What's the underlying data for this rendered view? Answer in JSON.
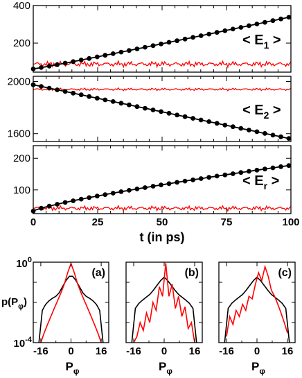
{
  "chart_data": [
    {
      "type": "line",
      "panel": "E1",
      "label_main": "< E",
      "label_sub": "1",
      "label_end": " >",
      "xlim": [
        0,
        100
      ],
      "ylim": [
        45,
        400
      ],
      "yticks": [
        200,
        400
      ],
      "series": [
        {
          "color": "#000000",
          "markers": true,
          "x": [
            0,
            100
          ],
          "y": [
            62,
            340
          ],
          "pow": 1.05
        },
        {
          "color": "#ff0000",
          "markers": false,
          "mean": 88,
          "amp": 12
        }
      ]
    },
    {
      "type": "line",
      "panel": "E2",
      "label_main": "< E",
      "label_sub": "2",
      "label_end": " >",
      "xlim": [
        0,
        100
      ],
      "ylim": [
        1540,
        2040
      ],
      "yticks": [
        1600,
        2000
      ],
      "series": [
        {
          "color": "#000000",
          "markers": true,
          "x": [
            0,
            100
          ],
          "y": [
            1975,
            1560
          ],
          "pow": 1.0
        },
        {
          "color": "#ff0000",
          "markers": false,
          "mean": 1940,
          "amp": 8
        }
      ]
    },
    {
      "type": "line",
      "panel": "Er",
      "label_main": "< E",
      "label_sub": "r",
      "label_end": " >",
      "xlim": [
        0,
        100
      ],
      "ylim": [
        25,
        240
      ],
      "yticks": [
        100,
        200
      ],
      "xticks": [
        0,
        25,
        50,
        75,
        100
      ],
      "xlabel": "t (in ps)",
      "series": [
        {
          "color": "#000000",
          "markers": true,
          "x": [
            0,
            100
          ],
          "y": [
            33,
            178
          ],
          "pow": 0.8
        },
        {
          "color": "#ff0000",
          "markers": false,
          "mean": 42,
          "amp": 6
        }
      ]
    }
  ],
  "insets": {
    "ylabel_main": "p(P",
    "ylabel_sub": "φ",
    "ylabel_end": ")",
    "y_top": "10",
    "y_top_exp": "0",
    "y_bot": "10",
    "y_bot_exp": "-4",
    "xticks": [
      "-16",
      "0",
      "16"
    ],
    "xlabel_main": "P",
    "xlabel_sub": "φ",
    "panels": [
      {
        "tag": "(a)",
        "black": [
          5e-05,
          0.004,
          0.008,
          0.012,
          0.016,
          0.02,
          0.03,
          0.06,
          0.12,
          0.2,
          0.2,
          0.12,
          0.06,
          0.03,
          0.02,
          0.016,
          0.012,
          0.008,
          0.004,
          5e-05
        ],
        "red": [
          0.0001,
          0.0003,
          0.0008,
          0.002,
          0.005,
          0.012,
          0.03,
          0.08,
          0.3,
          0.85,
          0.3,
          0.08,
          0.03,
          0.012,
          0.005,
          0.002,
          0.0008,
          0.0003,
          0.0001
        ]
      },
      {
        "tag": "(b)",
        "black": [
          8e-05,
          0.005,
          0.009,
          0.013,
          0.018,
          0.025,
          0.04,
          0.07,
          0.12,
          0.18,
          0.12,
          0.07,
          0.04,
          0.025,
          0.018,
          0.013,
          0.009,
          0.005,
          8e-05
        ],
        "red": [
          0.0001,
          0.0002,
          0.001,
          0.0004,
          0.003,
          0.001,
          0.01,
          0.004,
          0.06,
          0.02,
          0.9,
          0.02,
          0.08,
          0.005,
          0.02,
          0.002,
          0.006,
          0.0005,
          0.001,
          0.0001
        ]
      },
      {
        "tag": "(c)",
        "black": [
          8e-05,
          0.005,
          0.009,
          0.013,
          0.018,
          0.025,
          0.04,
          0.07,
          0.12,
          0.18,
          0.12,
          0.07,
          0.04,
          0.025,
          0.018,
          0.013,
          0.009,
          0.005,
          8e-05
        ],
        "red": [
          0.0002,
          0.002,
          0.0008,
          0.004,
          0.002,
          0.008,
          0.004,
          0.02,
          0.015,
          0.08,
          0.3,
          0.12,
          0.6,
          0.2,
          0.04,
          0.02,
          0.008,
          0.003,
          0.001,
          0.0003
        ]
      }
    ]
  }
}
